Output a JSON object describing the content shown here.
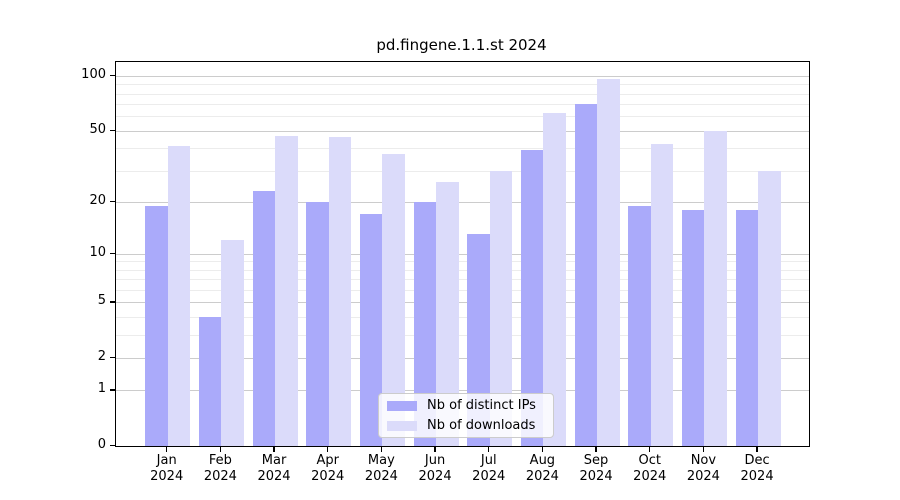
{
  "title": "pd.fingene.1.1.st 2024",
  "colors": {
    "ips": "#aaaafa",
    "downloads": "#dbdbfa",
    "grid_major": "#cccccc",
    "grid_minor": "#ececec",
    "axis": "#000000",
    "background": "#ffffff",
    "legend_border": "#cccccc"
  },
  "legend": {
    "items": [
      {
        "label": "Nb of distinct IPs",
        "color_key": "ips"
      },
      {
        "label": "Nb of downloads",
        "color_key": "downloads"
      }
    ]
  },
  "chart_data": {
    "type": "bar",
    "title": "pd.fingene.1.1.st 2024",
    "months": [
      "Jan",
      "Feb",
      "Mar",
      "Apr",
      "May",
      "Jun",
      "Jul",
      "Aug",
      "Sep",
      "Oct",
      "Nov",
      "Dec"
    ],
    "year_label": "2024",
    "series": [
      {
        "name": "Nb of distinct IPs",
        "values": [
          19,
          4,
          23,
          20,
          17,
          20,
          13,
          39,
          70,
          19,
          18,
          18
        ]
      },
      {
        "name": "Nb of downloads",
        "values": [
          41,
          12,
          47,
          46,
          37,
          26,
          30,
          63,
          96,
          42,
          50,
          30
        ]
      }
    ],
    "y_scale": "log1p",
    "y_ticks": [
      0,
      1,
      2,
      5,
      10,
      20,
      50,
      100
    ],
    "y_minor_ticks": [
      3,
      4,
      6,
      7,
      8,
      9,
      30,
      40,
      60,
      70,
      80,
      90
    ],
    "ylim": [
      0,
      120
    ],
    "xlabel": "",
    "ylabel": "",
    "grid": true,
    "legend_position": "lower-center"
  }
}
